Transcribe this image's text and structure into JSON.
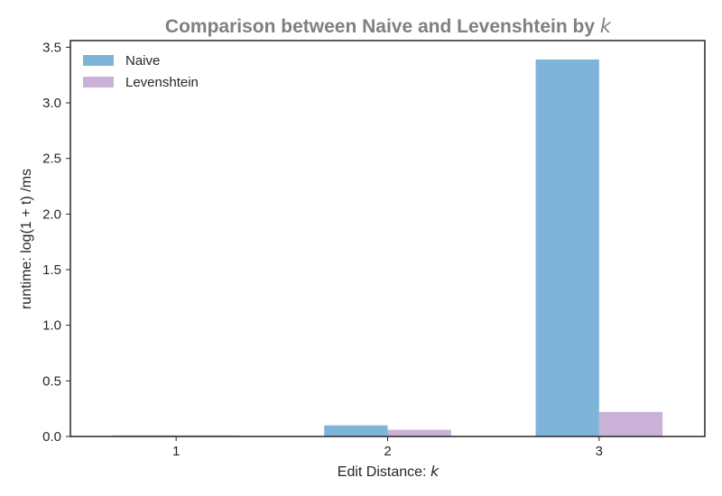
{
  "chart_data": {
    "type": "bar",
    "title": "Comparison between Naive and Levenshtein by",
    "title_var": "k",
    "xlabel": "Edit Distance:",
    "xlabel_var": "k",
    "ylabel": "runtime: log(1 + t) /ms",
    "categories": [
      "1",
      "2",
      "3"
    ],
    "series": [
      {
        "name": "Naive",
        "color": "#7eb4d7",
        "values": [
          0.01,
          0.1,
          3.39
        ]
      },
      {
        "name": "Levenshtein",
        "color": "#c9b1d8",
        "values": [
          0.01,
          0.06,
          0.22
        ]
      }
    ],
    "ylim": [
      0,
      3.56
    ],
    "yticks": [
      "0.0",
      "0.5",
      "1.0",
      "1.5",
      "2.0",
      "2.5",
      "3.0",
      "3.5"
    ],
    "legend": "top-left",
    "grid": false
  }
}
